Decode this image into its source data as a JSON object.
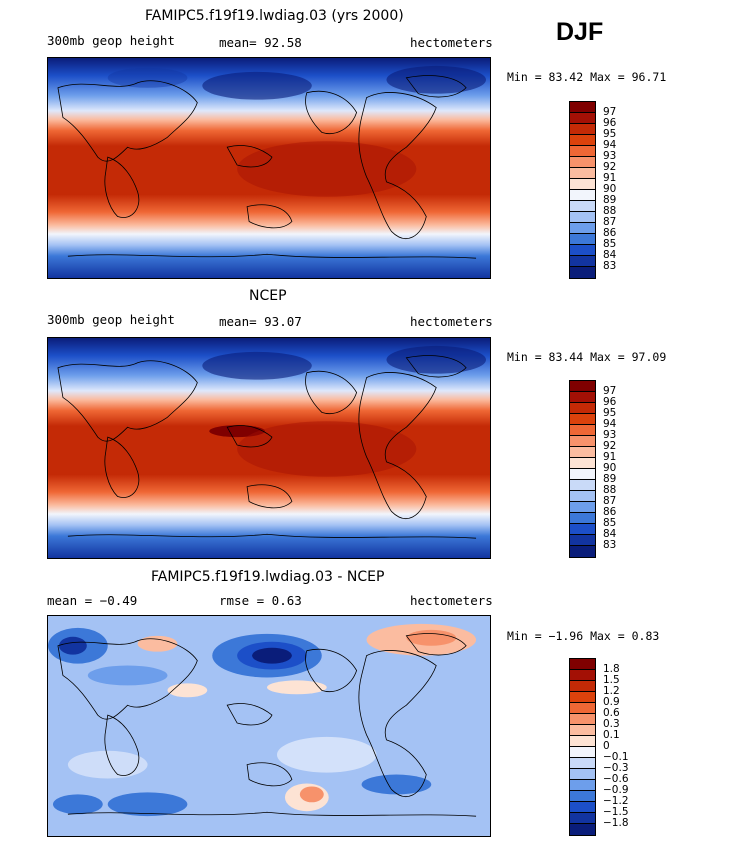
{
  "season": "DJF",
  "panels": [
    {
      "title": "FAMIPC5.f19f19.lwdiag.03 (yrs 2000)",
      "left_label": "300mb geop height",
      "mean_label": "mean=  92.58",
      "units": "hectometers",
      "minmax": "Min =  83.42 Max =  96.71",
      "kind": "field",
      "legend": [
        "97",
        "96",
        "95",
        "94",
        "93",
        "92",
        "91",
        "90",
        "89",
        "88",
        "87",
        "86",
        "85",
        "84",
        "83"
      ]
    },
    {
      "title": "NCEP",
      "left_label": "300mb geop height",
      "mean_label": "mean=  93.07",
      "units": "hectometers",
      "minmax": "Min =  83.44 Max =  97.09",
      "kind": "field",
      "legend": [
        "97",
        "96",
        "95",
        "94",
        "93",
        "92",
        "91",
        "90",
        "89",
        "88",
        "87",
        "86",
        "85",
        "84",
        "83"
      ]
    },
    {
      "title": "FAMIPC5.f19f19.lwdiag.03 - NCEP",
      "left_label": "mean =  −0.49",
      "mean_label": "rmse =   0.63",
      "units": "hectometers",
      "minmax": "Min =  −1.96 Max =   0.83",
      "kind": "diff",
      "legend": [
        "1.8",
        "1.5",
        "1.2",
        "0.9",
        "0.6",
        "0.3",
        "0.1",
        "0",
        "−0.1",
        "−0.3",
        "−0.6",
        "−0.9",
        "−1.2",
        "−1.5",
        "−1.8"
      ]
    }
  ],
  "colors": {
    "field_scale": [
      "#7f0000",
      "#a31005",
      "#c42a06",
      "#dc420c",
      "#ef6735",
      "#f7926b",
      "#fbbca0",
      "#fde3d4",
      "#f2f5fc",
      "#c9daf8",
      "#a4c2f4",
      "#6d9eeb",
      "#3c78d8",
      "#1c4fc8",
      "#1234a0",
      "#0a1d7a"
    ],
    "diff_scale": [
      "#7f0000",
      "#a31005",
      "#c42a06",
      "#dc420c",
      "#ef6735",
      "#f7926b",
      "#fbbca0",
      "#fde3d4",
      "#f2f5fc",
      "#c9daf8",
      "#a4c2f4",
      "#6d9eeb",
      "#3c78d8",
      "#1c4fc8",
      "#1234a0",
      "#0a1d7a"
    ]
  }
}
